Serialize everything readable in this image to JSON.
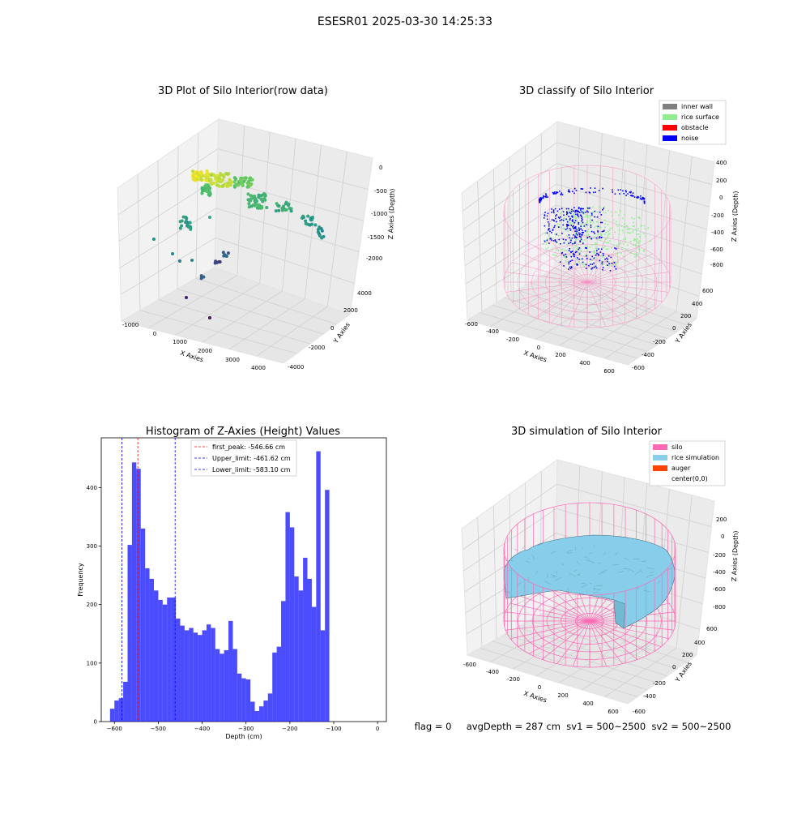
{
  "figure": {
    "suptitle": "ESESR01 2025-03-30 14:25:33",
    "footer": "flag = 0     avgDepth = 287 cm  sv1 = 500~2500  sv2 = 500~2500"
  },
  "panels": {
    "raw": {
      "title": "3D Plot of Silo Interior(row data)",
      "xlabel": "X Axies",
      "ylabel": "Y Axies",
      "zlabel": "Z Axies (Depth)",
      "xticks": [
        "-1000",
        "0",
        "1000",
        "2000",
        "3000",
        "4000"
      ],
      "yticks": [
        "-4000",
        "-2000",
        "0",
        "2000",
        "4000"
      ],
      "zticks": [
        "0",
        "-500",
        "-1000",
        "-1500",
        "-2000"
      ]
    },
    "classify": {
      "title": "3D classify of Silo Interior",
      "xlabel": "X Axies",
      "ylabel": "Y Axies",
      "zlabel": "Z Axies (Depth)",
      "xticks": [
        "-600",
        "-400",
        "-200",
        "0",
        "200",
        "400",
        "600"
      ],
      "yticks": [
        "-600",
        "-400",
        "-200",
        "0",
        "200",
        "400",
        "600"
      ],
      "zticks": [
        "400",
        "200",
        "0",
        "-200",
        "-400",
        "-600",
        "-800"
      ],
      "legend": [
        {
          "label": "inner wall",
          "color": "#808080"
        },
        {
          "label": "rice surface",
          "color": "#90ee90"
        },
        {
          "label": "obstacle",
          "color": "#ff0000"
        },
        {
          "label": "noise",
          "color": "#0000ff"
        }
      ]
    },
    "simulation": {
      "title": "3D simulation of Silo Interior",
      "xlabel": "X Axies",
      "ylabel": "Y Axies",
      "zlabel": "Z Axies (Depth)",
      "xticks": [
        "-600",
        "-400",
        "-200",
        "0",
        "200",
        "400",
        "600"
      ],
      "yticks": [
        "-600",
        "-400",
        "-200",
        "0",
        "200",
        "400",
        "600"
      ],
      "zticks": [
        "200",
        "0",
        "-200",
        "-400",
        "-600",
        "-800"
      ],
      "legend": [
        {
          "label": "silo",
          "color": "#ff69b4"
        },
        {
          "label": "rice simulation",
          "color": "#87ceeb"
        },
        {
          "label": "auger",
          "color": "#ff4500"
        },
        {
          "label": "center(0,0)",
          "color": "#ffffff"
        }
      ]
    }
  },
  "colors": {
    "histogram_bar": "#0000ff",
    "first_peak_line": "#ff0000",
    "limit_line": "#0000ff",
    "silo_wire": "#ff69b4",
    "rice_surface": "#87ceeb",
    "noise_points": "#0000ff",
    "surface_points": "#90ee90"
  },
  "chart_data": {
    "type": "bar",
    "title": "Histogram of Z-Axies (Height) Values",
    "xlabel": "Depth (cm)",
    "ylabel": "Frequency",
    "xlim": [
      -630,
      20
    ],
    "ylim": [
      0,
      485
    ],
    "grid": false,
    "legend_position": "top-center",
    "xticks": [
      -600,
      -500,
      -400,
      -300,
      -200,
      -100,
      0
    ],
    "yticks": [
      0,
      100,
      200,
      300,
      400
    ],
    "bin_start": -610,
    "bin_width": 10,
    "values": [
      22,
      36,
      40,
      68,
      302,
      443,
      432,
      330,
      262,
      244,
      224,
      208,
      200,
      212,
      212,
      176,
      164,
      156,
      160,
      152,
      148,
      156,
      166,
      160,
      124,
      116,
      122,
      172,
      124,
      82,
      74,
      72,
      34,
      18,
      26,
      36,
      48,
      118,
      128,
      206,
      358,
      332,
      248,
      224,
      280,
      244,
      196,
      462,
      156,
      396
    ],
    "vlines": [
      {
        "label": "first_peak: -546.66 cm",
        "x": -546.66,
        "color": "#ff0000"
      },
      {
        "label": "Upper_limit: -461.62 cm",
        "x": -461.62,
        "color": "#0000ff"
      },
      {
        "label": "Lower_limit: -583.10 cm",
        "x": -583.1,
        "color": "#0000ff"
      }
    ]
  }
}
